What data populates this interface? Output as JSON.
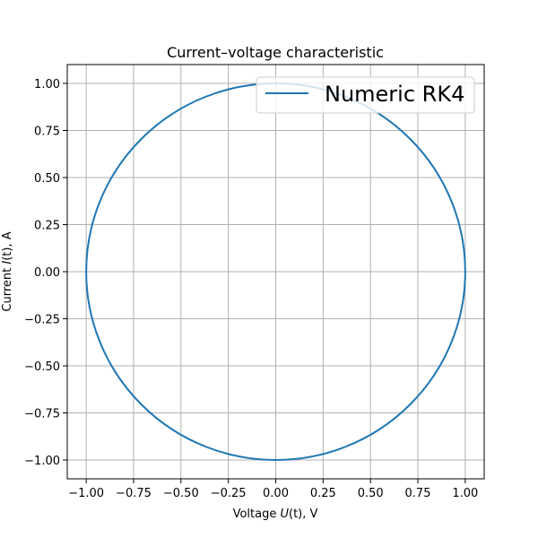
{
  "chart_data": {
    "type": "line",
    "title": "Current–voltage characteristic",
    "xlabel": {
      "prefix": "Voltage ",
      "var": "U",
      "suffix": "(t), V"
    },
    "ylabel": {
      "prefix": "Current ",
      "var": "I",
      "suffix": "(t), A"
    },
    "xlim": [
      -1.1,
      1.1
    ],
    "ylim": [
      -1.1,
      1.1
    ],
    "xticks": [
      -1.0,
      -0.75,
      -0.5,
      -0.25,
      0.0,
      0.25,
      0.5,
      0.75,
      1.0
    ],
    "yticks": [
      -1.0,
      -0.75,
      -0.5,
      -0.25,
      0.0,
      0.25,
      0.5,
      0.75,
      1.0
    ],
    "xtick_labels": [
      "−1.00",
      "−0.75",
      "−0.50",
      "−0.25",
      "0.00",
      "0.25",
      "0.50",
      "0.75",
      "1.00"
    ],
    "ytick_labels": [
      "−1.00",
      "−0.75",
      "−0.50",
      "−0.25",
      "0.00",
      "0.25",
      "0.50",
      "0.75",
      "1.00"
    ],
    "grid": true,
    "legend": {
      "placement": "top-right"
    },
    "series": [
      {
        "name": "Numeric RK4",
        "color": "#1f77b4",
        "shape": "circle",
        "center": [
          0.0,
          0.0
        ],
        "radius": 1.0
      }
    ]
  }
}
